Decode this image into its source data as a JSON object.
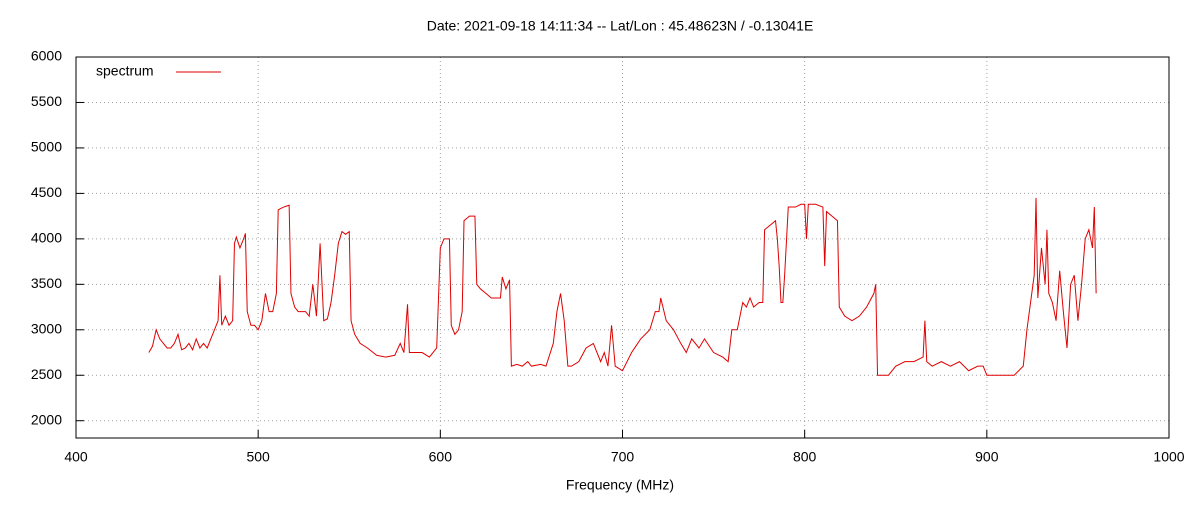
{
  "chart_data": {
    "type": "line",
    "title": "Date: 2021-09-18 14:11:34  --  Lat/Lon : 45.48623N / -0.13041E",
    "x_label": "Frequency (MHz)",
    "xlim": [
      400,
      1000
    ],
    "xticks": [
      400,
      500,
      600,
      700,
      800,
      900,
      1000
    ],
    "ylim": [
      1810,
      6000
    ],
    "yticks": [
      2000,
      2500,
      3000,
      3500,
      4000,
      4500,
      5000,
      5500,
      6000
    ],
    "grid": true,
    "legend": "top-left",
    "x": [
      440,
      442,
      444,
      446,
      448,
      450,
      452,
      454,
      456,
      458,
      460,
      462,
      464,
      466,
      468,
      470,
      472,
      474,
      476,
      478,
      479,
      480,
      482,
      484,
      486,
      487,
      488,
      490,
      492,
      493,
      494,
      496,
      498,
      500,
      502,
      504,
      506,
      508,
      510,
      511,
      514,
      517,
      518,
      520,
      522,
      524,
      526,
      528,
      530,
      532,
      534,
      536,
      538,
      540,
      542,
      544,
      546,
      548,
      550,
      551,
      553,
      556,
      560,
      565,
      570,
      575,
      578,
      580,
      582,
      583,
      585,
      590,
      594,
      598,
      600,
      602,
      605,
      606,
      608,
      610,
      612,
      613,
      616,
      619,
      620,
      622,
      625,
      628,
      633,
      634,
      636,
      638,
      639,
      642,
      645,
      648,
      650,
      655,
      658,
      662,
      664,
      666,
      668,
      670,
      672,
      676,
      680,
      684,
      688,
      690,
      692,
      694,
      696,
      700,
      705,
      710,
      715,
      718,
      720,
      721,
      724,
      728,
      732,
      735,
      738,
      742,
      745,
      750,
      755,
      758,
      760,
      763,
      766,
      768,
      770,
      772,
      775,
      777,
      778,
      781,
      784,
      785,
      786,
      787,
      788,
      789,
      791,
      795,
      798,
      800,
      801,
      802,
      806,
      810,
      811,
      812,
      815,
      818,
      819,
      822,
      826,
      830,
      834,
      838,
      839,
      840,
      843,
      846,
      850,
      855,
      860,
      865,
      866,
      867,
      870,
      875,
      880,
      885,
      890,
      895,
      898,
      900,
      904,
      910,
      915,
      920,
      922,
      924,
      926,
      927,
      928,
      930,
      932,
      933,
      934,
      936,
      938,
      940,
      942,
      944,
      946,
      948,
      950,
      952,
      954,
      956,
      958,
      959,
      960
    ],
    "series": [
      {
        "name": "spectrum",
        "color": "#e00000",
        "values": [
          2750,
          2820,
          3000,
          2900,
          2850,
          2800,
          2800,
          2850,
          2950,
          2780,
          2800,
          2850,
          2780,
          2900,
          2800,
          2850,
          2800,
          2900,
          3000,
          3100,
          3600,
          3050,
          3150,
          3050,
          3100,
          3950,
          4020,
          3900,
          4000,
          4060,
          3200,
          3050,
          3050,
          3000,
          3100,
          3400,
          3200,
          3200,
          3400,
          4320,
          4350,
          4370,
          3400,
          3250,
          3200,
          3200,
          3200,
          3150,
          3500,
          3150,
          3950,
          3100,
          3120,
          3300,
          3600,
          3950,
          4080,
          4050,
          4080,
          3100,
          2950,
          2850,
          2800,
          2720,
          2700,
          2720,
          2850,
          2750,
          3280,
          2750,
          2750,
          2750,
          2700,
          2800,
          3900,
          4000,
          4000,
          3050,
          2950,
          3000,
          3200,
          4200,
          4250,
          4250,
          3500,
          3450,
          3400,
          3350,
          3350,
          3580,
          3450,
          3550,
          2600,
          2620,
          2600,
          2650,
          2600,
          2620,
          2600,
          2850,
          3200,
          3400,
          3100,
          2600,
          2600,
          2650,
          2800,
          2850,
          2650,
          2750,
          2600,
          3050,
          2600,
          2550,
          2750,
          2900,
          3000,
          3200,
          3200,
          3350,
          3100,
          3000,
          2850,
          2750,
          2900,
          2800,
          2900,
          2750,
          2700,
          2650,
          3000,
          3000,
          3300,
          3250,
          3350,
          3250,
          3300,
          3300,
          4100,
          4150,
          4200,
          4000,
          3700,
          3300,
          3300,
          3600,
          4350,
          4350,
          4380,
          4380,
          4000,
          4380,
          4380,
          4350,
          3700,
          4300,
          4250,
          4200,
          3250,
          3150,
          3100,
          3150,
          3250,
          3400,
          3500,
          2500,
          2500,
          2500,
          2600,
          2650,
          2650,
          2700,
          3100,
          2650,
          2600,
          2650,
          2600,
          2650,
          2550,
          2600,
          2600,
          2500,
          2500,
          2500,
          2500,
          2600,
          3000,
          3300,
          3600,
          4450,
          3350,
          3900,
          3500,
          4100,
          3400,
          3300,
          3100,
          3650,
          3200,
          2800,
          3500,
          3600,
          3100,
          3500,
          4000,
          4100,
          3900,
          4350,
          3400
        ]
      }
    ]
  }
}
